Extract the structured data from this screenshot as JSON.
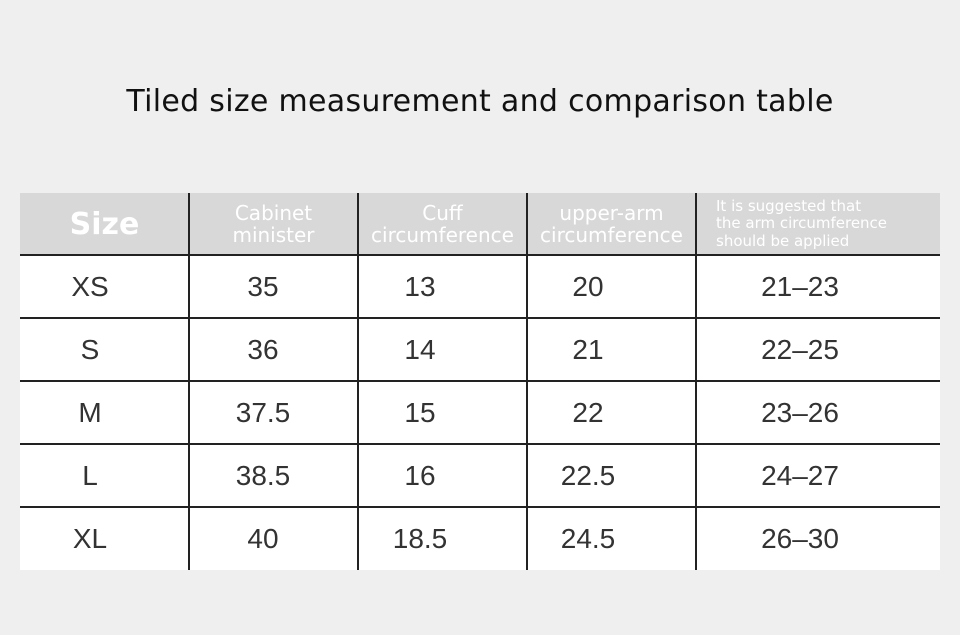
{
  "title": "Tiled size measurement and comparison table",
  "table": {
    "headers": [
      [
        "Size"
      ],
      [
        "Cabinet",
        "minister"
      ],
      [
        "Cuff",
        "circumference"
      ],
      [
        "upper-arm",
        "circumference"
      ],
      [
        "It is suggested that",
        "the arm circumference",
        "should be applied"
      ]
    ],
    "rows": [
      [
        "XS",
        "35",
        "13",
        "20",
        "21–23"
      ],
      [
        "S",
        "36",
        "14",
        "21",
        "22–25"
      ],
      [
        "M",
        "37.5",
        "15",
        "22",
        "23–26"
      ],
      [
        "L",
        "38.5",
        "16",
        "22.5",
        "24–27"
      ],
      [
        "XL",
        "40",
        "18.5",
        "24.5",
        "26–30"
      ]
    ]
  }
}
